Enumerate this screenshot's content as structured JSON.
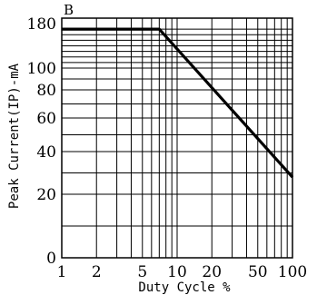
{
  "chart_data": {
    "type": "line",
    "panel_label": "B",
    "xlabel": "Duty Cycle %",
    "ylabel": "Peak Current(IP)-mA",
    "x_scale": "log",
    "y_scale": "nonlinear",
    "xlim": [
      1,
      100
    ],
    "ylim": [
      0,
      180
    ],
    "grid": true,
    "x_ticks": [
      {
        "value": 1,
        "label": "1"
      },
      {
        "value": 2,
        "label": "2"
      },
      {
        "value": 5,
        "label": "5"
      },
      {
        "value": 10,
        "label": "10"
      },
      {
        "value": 20,
        "label": "20"
      },
      {
        "value": 50,
        "label": "50"
      },
      {
        "value": 100,
        "label": "100"
      }
    ],
    "y_ticks": [
      {
        "value": 0,
        "label": "0"
      },
      {
        "value": 20,
        "label": "20"
      },
      {
        "value": 40,
        "label": "40"
      },
      {
        "value": 60,
        "label": "60"
      },
      {
        "value": 80,
        "label": "80"
      },
      {
        "value": 100,
        "label": "100"
      },
      {
        "value": 180,
        "label": "180"
      }
    ],
    "series": [
      {
        "x": [
          1,
          7,
          100
        ],
        "y": [
          170,
          170,
          28
        ]
      }
    ]
  }
}
